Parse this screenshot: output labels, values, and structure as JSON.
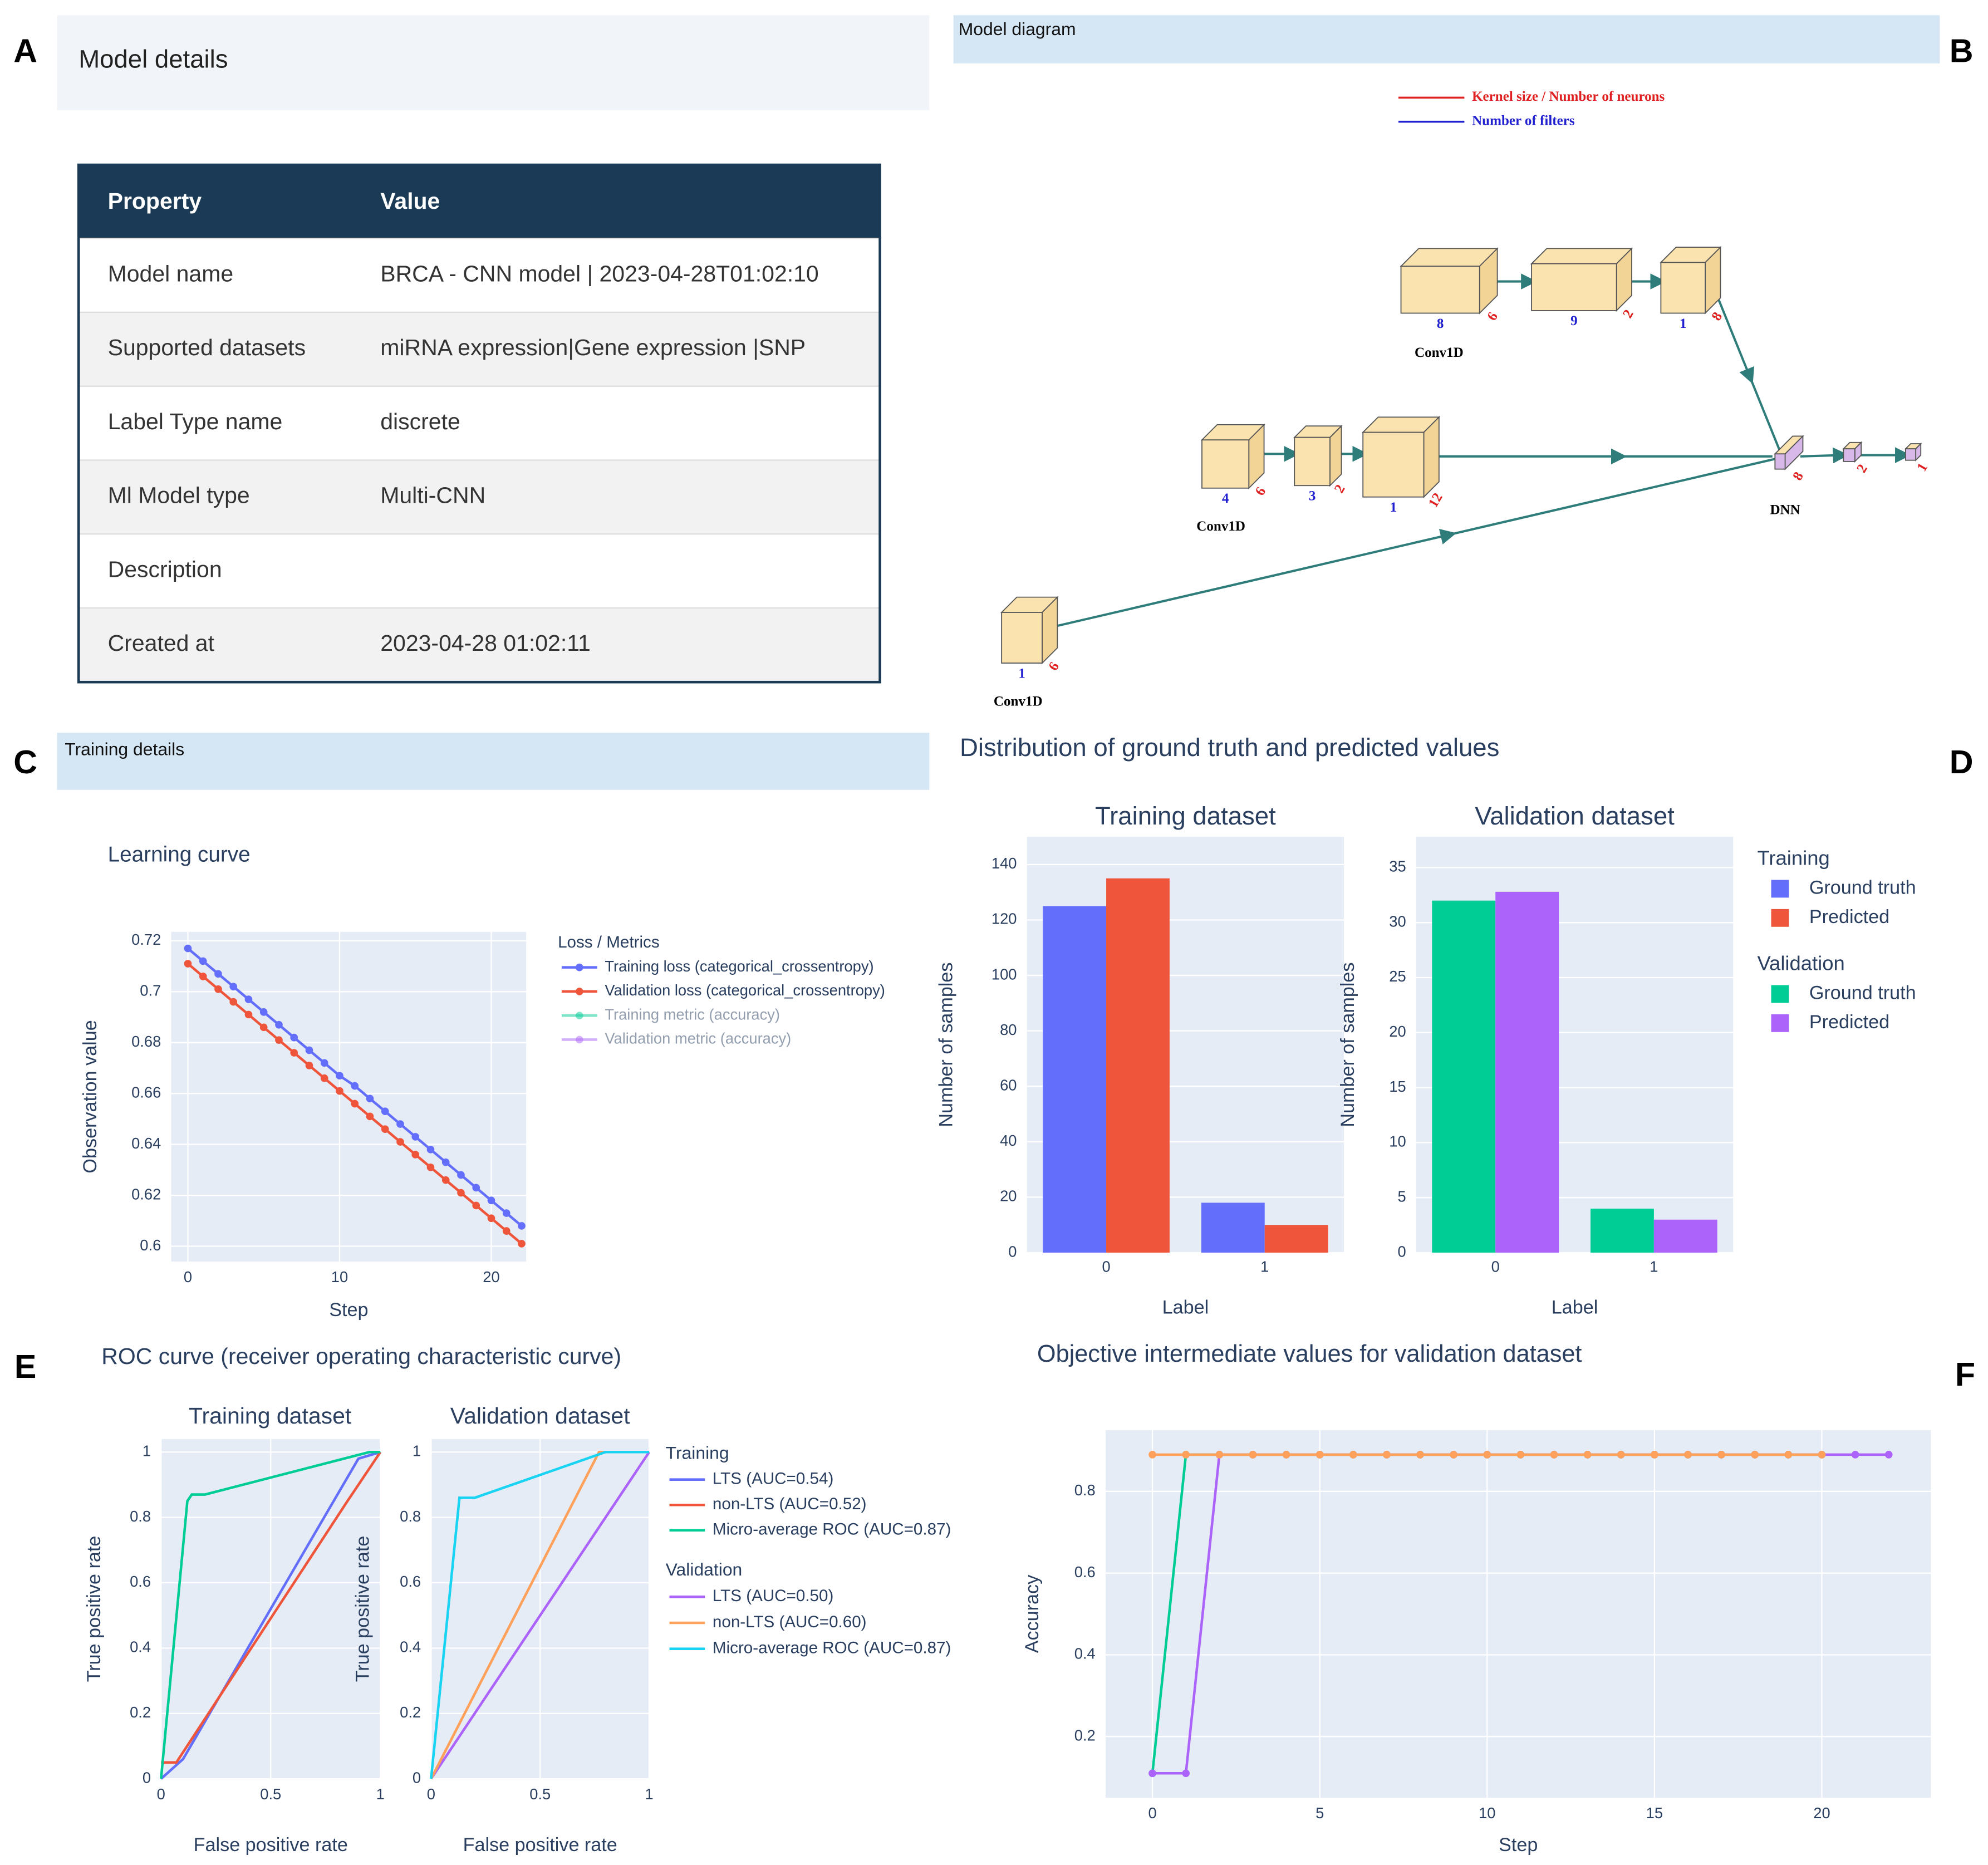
{
  "panel_labels": [
    "A",
    "B",
    "C",
    "D",
    "E",
    "F"
  ],
  "model_details": {
    "title": "Model details",
    "table": {
      "header": [
        "Property",
        "Value"
      ],
      "rows": [
        [
          "Model name",
          "BRCA - CNN model | 2023-04-28T01:02:10"
        ],
        [
          "Supported datasets",
          "miRNA expression|Gene expression |SNP"
        ],
        [
          "Label Type name",
          "discrete"
        ],
        [
          "Ml Model type",
          "Multi-CNN"
        ],
        [
          "Description"
        ],
        [
          "Created at",
          "2023-04-28 01:02:11"
        ]
      ]
    }
  },
  "model_diagram": {
    "title": "Model diagram",
    "legend": [
      "Kernel size / Number of neurons",
      "Number of filters"
    ],
    "branches": [
      {
        "label": "Conv1D",
        "blocks": [
          {
            "filters": 8,
            "kernel": 6
          },
          {
            "filters": 9,
            "kernel": 2
          },
          {
            "filters": 1,
            "kernel": 8
          }
        ]
      },
      {
        "label": "Conv1D",
        "blocks": [
          {
            "filters": 4,
            "kernel": 6
          },
          {
            "filters": 3,
            "kernel": 2
          },
          {
            "filters": 1,
            "kernel": 12
          }
        ]
      },
      {
        "label": "Conv1D",
        "blocks": [
          {
            "filters": 1,
            "kernel": 6
          }
        ]
      }
    ],
    "dnn": {
      "label": "DNN",
      "blocks": [
        8,
        2,
        1
      ]
    }
  },
  "training_details": {
    "title": "Training details"
  },
  "chart_data": [
    {
      "type": "line",
      "title": "Learning curve",
      "x_label": "Step",
      "y_label": "Observation value",
      "legend_title": "Loss / Metrics",
      "markers": true,
      "grid": true,
      "x": [
        0,
        1,
        2,
        3,
        4,
        5,
        6,
        7,
        8,
        9,
        10,
        11,
        12,
        13,
        14,
        15,
        16,
        17,
        18,
        19,
        20,
        21,
        22
      ],
      "xlim": [
        -1.1,
        22.3
      ],
      "xticks": [
        0,
        10,
        20
      ],
      "ylim": [
        0.594,
        0.7235
      ],
      "yticks": [
        0.6,
        0.62,
        0.64,
        0.66,
        0.68,
        0.7,
        0.72
      ],
      "series": [
        {
          "name": "Training loss (categorical_crossentropy)",
          "color": "#636efa",
          "values": [
            0.717,
            0.712,
            0.707,
            0.702,
            0.697,
            0.692,
            0.687,
            0.682,
            0.677,
            0.672,
            0.667,
            0.663,
            0.658,
            0.653,
            0.648,
            0.643,
            0.638,
            0.633,
            0.628,
            0.623,
            0.618,
            0.613,
            0.608
          ]
        },
        {
          "name": "Validation loss (categorical_crossentropy)",
          "color": "#ef553b",
          "values": [
            0.711,
            0.706,
            0.701,
            0.696,
            0.691,
            0.686,
            0.681,
            0.676,
            0.671,
            0.666,
            0.661,
            0.656,
            0.651,
            0.646,
            0.641,
            0.636,
            0.631,
            0.626,
            0.621,
            0.616,
            0.611,
            0.606,
            0.601
          ]
        },
        {
          "name": "Training metric (accuracy)",
          "color": "#00cc96",
          "visible": false,
          "values": [
            null,
            null,
            null,
            null,
            null,
            null,
            null,
            null,
            null,
            null,
            null,
            null,
            null,
            null,
            null,
            null,
            null,
            null,
            null,
            null,
            null,
            null,
            null
          ]
        },
        {
          "name": "Validation metric (accuracy)",
          "color": "#ab63fa",
          "visible": false,
          "values": [
            null,
            null,
            null,
            null,
            null,
            null,
            null,
            null,
            null,
            null,
            null,
            null,
            null,
            null,
            null,
            null,
            null,
            null,
            null,
            null,
            null,
            null,
            null
          ]
        }
      ]
    },
    {
      "type": "bar",
      "figure_title": "Distribution of ground truth and predicted values",
      "title": "Training dataset",
      "x_label": "Label",
      "y_label": "Number of samples",
      "legend_title": "Training",
      "grid": true,
      "categories": [
        "0",
        "1"
      ],
      "ylim": [
        0,
        150
      ],
      "yticks": [
        0,
        20,
        40,
        60,
        80,
        100,
        120,
        140
      ],
      "series": [
        {
          "name": "Ground truth",
          "color": "#636efa",
          "values": [
            125,
            18
          ]
        },
        {
          "name": "Predicted",
          "color": "#ef553b",
          "values": [
            135,
            10
          ]
        }
      ]
    },
    {
      "type": "bar",
      "title": "Validation dataset",
      "x_label": "Label",
      "y_label": "Number of samples",
      "legend_title": "Validation",
      "grid": true,
      "categories": [
        "0",
        "1"
      ],
      "ylim": [
        0,
        37.8
      ],
      "yticks": [
        0,
        5,
        10,
        15,
        20,
        25,
        30,
        35
      ],
      "series": [
        {
          "name": "Ground truth",
          "color": "#00cc96",
          "values": [
            32,
            4
          ]
        },
        {
          "name": "Predicted",
          "color": "#ab63fa",
          "values": [
            32.8,
            3
          ]
        }
      ]
    },
    {
      "type": "line",
      "figure_title": "ROC curve (receiver operating characteristic curve)",
      "title": "Training dataset",
      "x_label": "False positive rate",
      "y_label": "True positive rate",
      "legend_title": "Training",
      "grid": true,
      "xlim": [
        0,
        1
      ],
      "xticks": [
        0,
        0.5,
        1
      ],
      "ylim": [
        0,
        1.04
      ],
      "yticks": [
        0,
        0.2,
        0.4,
        0.6,
        0.8,
        1
      ],
      "series": [
        {
          "name": "LTS (AUC=0.54)",
          "color": "#636efa",
          "x": [
            0,
            0.1,
            0.9,
            1
          ],
          "values": [
            0,
            0.06,
            0.98,
            1
          ]
        },
        {
          "name": "non-LTS (AUC=0.52)",
          "color": "#ef553b",
          "x": [
            0,
            0.07,
            0.85,
            1
          ],
          "values": [
            0.05,
            0.05,
            0.85,
            1
          ]
        },
        {
          "name": "Micro-average ROC (AUC=0.87)",
          "color": "#00cc96",
          "x": [
            0,
            0.12,
            0.14,
            0.2,
            0.95,
            1
          ],
          "values": [
            0,
            0.85,
            0.87,
            0.87,
            1,
            1
          ]
        }
      ]
    },
    {
      "type": "line",
      "title": "Validation dataset",
      "x_label": "False positive rate",
      "y_label": "True positive rate",
      "legend_title": "Validation",
      "grid": true,
      "xlim": [
        0,
        1
      ],
      "xticks": [
        0,
        0.5,
        1
      ],
      "ylim": [
        0,
        1.04
      ],
      "yticks": [
        0,
        0.2,
        0.4,
        0.6,
        0.8,
        1
      ],
      "series": [
        {
          "name": "LTS (AUC=0.50)",
          "color": "#ab63fa",
          "x": [
            0,
            1
          ],
          "values": [
            0,
            1
          ]
        },
        {
          "name": "non-LTS (AUC=0.60)",
          "color": "#ffa15a",
          "x": [
            0,
            0.77,
            1
          ],
          "values": [
            0,
            1,
            1
          ]
        },
        {
          "name": "Micro-average ROC (AUC=0.87)",
          "color": "#19d3f3",
          "x": [
            0,
            0.13,
            0.2,
            0.8,
            1
          ],
          "values": [
            0,
            0.86,
            0.86,
            1,
            1
          ]
        }
      ]
    },
    {
      "type": "line",
      "title": "Objective intermediate values for validation dataset",
      "x_label": "Step",
      "y_label": "Accuracy",
      "markers": true,
      "grid": true,
      "xlim": [
        -1.4,
        23.26
      ],
      "xticks": [
        0,
        5,
        10,
        15,
        20
      ],
      "ylim": [
        0.05,
        0.95
      ],
      "yticks": [
        0.2,
        0.4,
        0.6,
        0.8
      ],
      "series": [
        {
          "color": "#00cc96",
          "x": [
            0,
            1,
            2,
            3,
            4,
            5,
            6,
            7,
            8,
            9,
            10,
            11,
            12,
            13,
            14,
            15,
            16,
            17,
            18,
            19,
            20
          ],
          "values": [
            0.11,
            0.89,
            0.89,
            0.89,
            0.89,
            0.89,
            0.89,
            0.89,
            0.89,
            0.89,
            0.89,
            0.89,
            0.89,
            0.89,
            0.89,
            0.89,
            0.89,
            0.89,
            0.89,
            0.89,
            0.89
          ]
        },
        {
          "color": "#ab63fa",
          "x": [
            0,
            1,
            2,
            3,
            4,
            5,
            6,
            7,
            8,
            9,
            10,
            11,
            12,
            13,
            14,
            15,
            16,
            17,
            18,
            19,
            20,
            21,
            22
          ],
          "values": [
            0.11,
            0.11,
            0.89,
            0.89,
            0.89,
            0.89,
            0.89,
            0.89,
            0.89,
            0.89,
            0.89,
            0.89,
            0.89,
            0.89,
            0.89,
            0.89,
            0.89,
            0.89,
            0.89,
            0.89,
            0.89,
            0.89,
            0.89
          ]
        },
        {
          "color": "#ffa15a",
          "x": [
            0,
            1,
            2,
            3,
            4,
            5,
            6,
            7,
            8,
            9,
            10,
            11,
            12,
            13,
            14,
            15,
            16,
            17,
            18,
            19,
            20
          ],
          "values": [
            0.89,
            0.89,
            0.89,
            0.89,
            0.89,
            0.89,
            0.89,
            0.89,
            0.89,
            0.89,
            0.89,
            0.89,
            0.89,
            0.89,
            0.89,
            0.89,
            0.89,
            0.89,
            0.89,
            0.89,
            0.89
          ]
        }
      ]
    }
  ]
}
